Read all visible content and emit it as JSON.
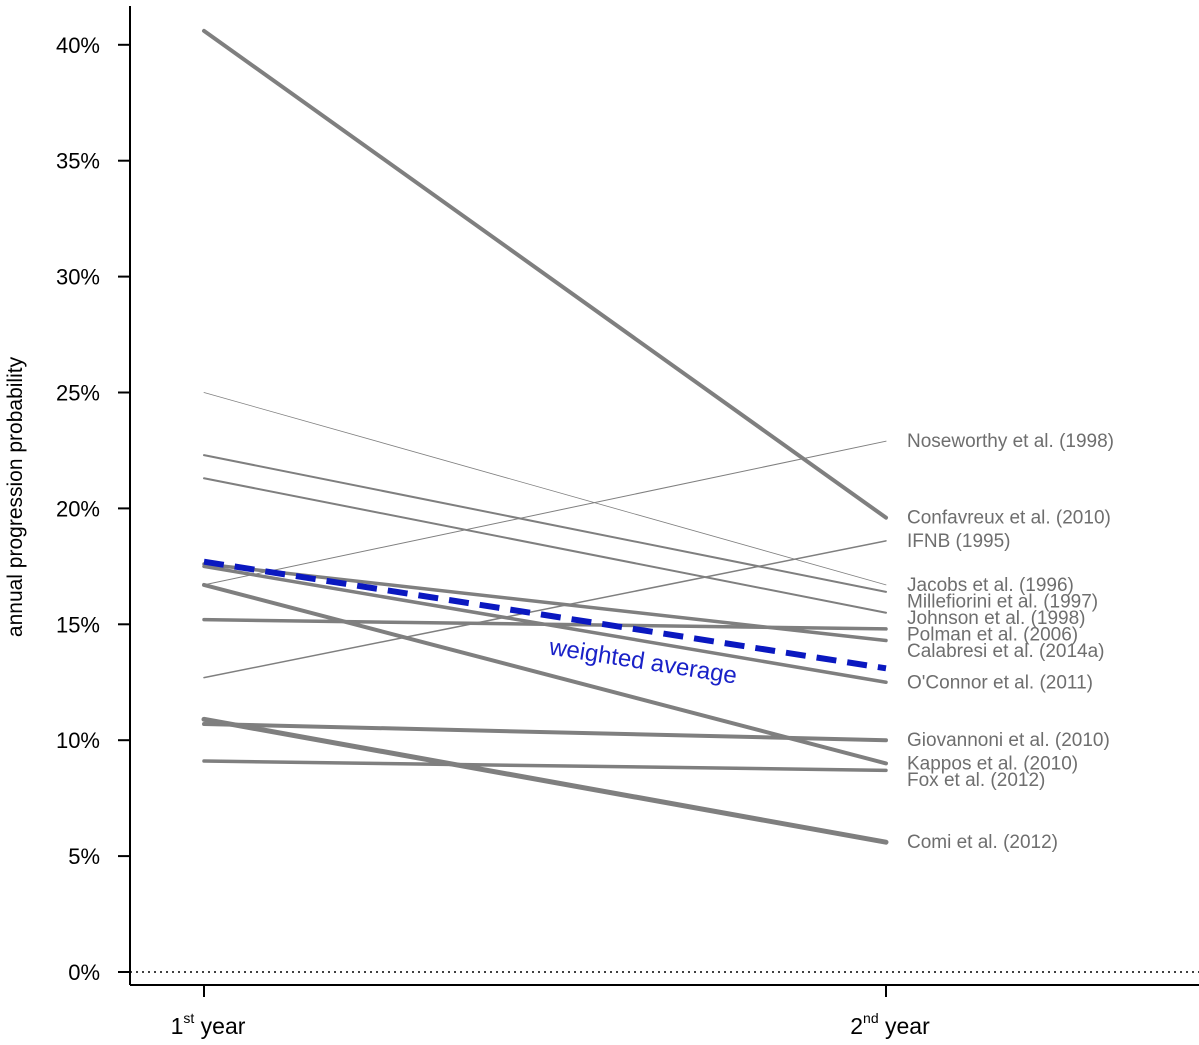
{
  "chart_data": {
    "type": "line",
    "ylabel": "annual progression probability",
    "ylim": [
      0,
      0.42
    ],
    "y_ticks": [
      0,
      0.05,
      0.1,
      0.15,
      0.2,
      0.25,
      0.3,
      0.35,
      0.4
    ],
    "y_tick_labels": [
      "0%",
      "5%",
      "10%",
      "15%",
      "20%",
      "25%",
      "30%",
      "35%",
      "40%"
    ],
    "categories": [
      {
        "base": "1",
        "sup": "st",
        "rest": " year"
      },
      {
        "base": "2",
        "sup": "nd",
        "rest": " year"
      }
    ],
    "reference_line": {
      "y": 0,
      "style": "dotted"
    },
    "series_color": "#7f7f7f",
    "average_color": "#0a18c0",
    "series": [
      {
        "name": "Noseworthy et al. (1998)",
        "values": [
          0.167,
          0.229
        ],
        "weight": 1
      },
      {
        "name": "Confavreux et al. (2010)",
        "values": [
          0.406,
          0.196
        ],
        "weight": 4
      },
      {
        "name": "IFNB (1995)",
        "values": [
          0.127,
          0.186
        ],
        "weight": 1.5
      },
      {
        "name": "Jacobs et al. (1996)",
        "values": [
          0.25,
          0.167
        ],
        "weight": 0.8
      },
      {
        "name": "Millefiorini et al. (1997)",
        "values": [
          0.223,
          0.164
        ],
        "weight": 2
      },
      {
        "name": "Johnson et al. (1998)",
        "values": [
          0.213,
          0.155
        ],
        "weight": 2
      },
      {
        "name": "Polman et al. (2006)",
        "values": [
          0.152,
          0.148
        ],
        "weight": 3.5
      },
      {
        "name": "Calabresi et al. (2014a)",
        "values": [
          0.176,
          0.143
        ],
        "weight": 3.5
      },
      {
        "name": "O'Connor et al. (2011)",
        "values": [
          0.175,
          0.125
        ],
        "weight": 3.5
      },
      {
        "name": "Giovannoni et al. (2010)",
        "values": [
          0.107,
          0.1
        ],
        "weight": 4
      },
      {
        "name": "Kappos et al. (2010)",
        "values": [
          0.167,
          0.09
        ],
        "weight": 4
      },
      {
        "name": "Fox et al. (2012)",
        "values": [
          0.091,
          0.087
        ],
        "weight": 3.5
      },
      {
        "name": "Comi et al. (2012)",
        "values": [
          0.109,
          0.056
        ],
        "weight": 5
      }
    ],
    "average": {
      "name": "weighted average",
      "values": [
        0.177,
        0.131
      ]
    }
  }
}
